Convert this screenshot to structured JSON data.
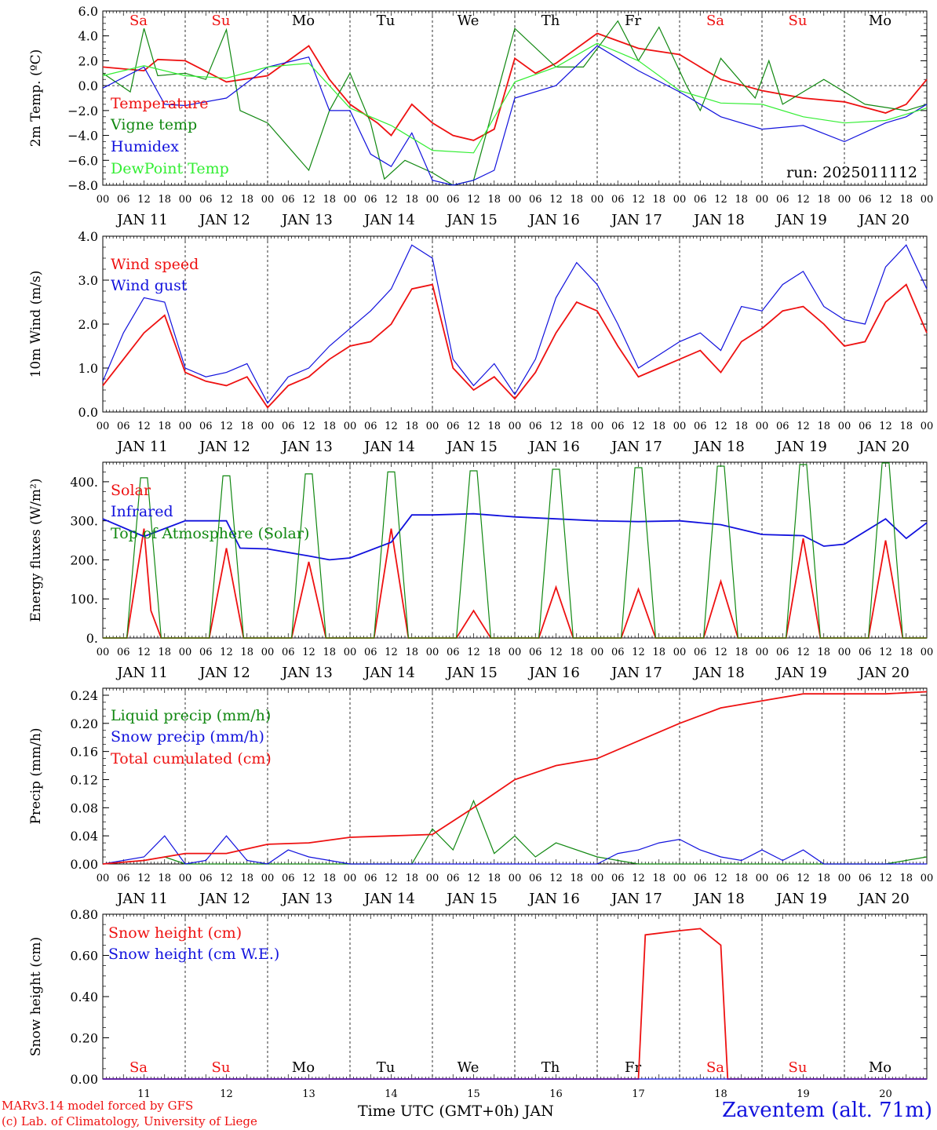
{
  "footer": {
    "model": "MARv3.14 model forced by GFS",
    "lab": "(c) Lab. of Climatology, University of Liege",
    "xlabel": "Time UTC (GMT+0h) JAN",
    "station": "Zaventem (alt. 71m)"
  },
  "colors": {
    "red": "#ee1111",
    "green": "#118811",
    "blue": "#1111dd",
    "lightgreen": "#33ee33",
    "black": "#000000"
  },
  "x_axis": {
    "days": [
      "JAN 11",
      "JAN 12",
      "JAN 13",
      "JAN 14",
      "JAN 15",
      "JAN 16",
      "JAN 17",
      "JAN 18",
      "JAN 19",
      "JAN 20"
    ],
    "hour_ticks": [
      "00",
      "06",
      "12",
      "18"
    ],
    "last_tick": "00",
    "bottom_days": [
      "11",
      "12",
      "13",
      "14",
      "15",
      "16",
      "17",
      "18",
      "19",
      "20"
    ]
  },
  "weekdays": [
    {
      "label": "Sa",
      "weekend": true
    },
    {
      "label": "Su",
      "weekend": true
    },
    {
      "label": "Mo",
      "weekend": false
    },
    {
      "label": "Tu",
      "weekend": false
    },
    {
      "label": "We",
      "weekend": false
    },
    {
      "label": "Th",
      "weekend": false
    },
    {
      "label": "Fr",
      "weekend": false
    },
    {
      "label": "Sa",
      "weekend": true
    },
    {
      "label": "Su",
      "weekend": true
    },
    {
      "label": "Mo",
      "weekend": false
    }
  ],
  "chart_data": [
    {
      "type": "line",
      "ylabel": "2m Temp. (ºC)",
      "ylim": [
        -8,
        6
      ],
      "yticks": [
        "6.0",
        "4.0",
        "2.0",
        "0.0",
        "−2.0",
        "−4.0",
        "−6.0",
        "−8.0"
      ],
      "yticks_values": [
        6,
        4,
        2,
        0,
        -2,
        -4,
        -6,
        -8
      ],
      "annotation": "run: 2025011112",
      "zero_line": true,
      "series": [
        {
          "name": "Temperature",
          "color": "red",
          "x": [
            0,
            12,
            16,
            24,
            36,
            48,
            60,
            66,
            72,
            80,
            84,
            90,
            96,
            102,
            108,
            114,
            120,
            126,
            132,
            144,
            156,
            168,
            180,
            192,
            204,
            216,
            228,
            234,
            240
          ],
          "y": [
            1.5,
            1.2,
            2.1,
            2.0,
            0.3,
            0.8,
            3.2,
            0.5,
            -1.5,
            -3,
            -4,
            -1.5,
            -3,
            -4,
            -4.4,
            -3.5,
            2.2,
            1,
            1.8,
            4.2,
            3,
            2.5,
            0.5,
            -0.4,
            -1,
            -1.3,
            -2.2,
            -1.5,
            0.5
          ]
        },
        {
          "name": "Vigne temp",
          "color": "green",
          "x": [
            0,
            8,
            12,
            16,
            24,
            30,
            36,
            40,
            48,
            60,
            66,
            72,
            78,
            82,
            88,
            96,
            102,
            108,
            120,
            132,
            140,
            150,
            156,
            162,
            170,
            174,
            180,
            190,
            194,
            198,
            210,
            222,
            234,
            240
          ],
          "y": [
            1,
            -0.5,
            4.6,
            0.8,
            1,
            0.5,
            4.5,
            -2,
            -3,
            -6.8,
            -2,
            1,
            -3,
            -7.5,
            -6,
            -7,
            -8,
            -7.6,
            4.6,
            1.5,
            1.5,
            5.2,
            2,
            4.7,
            0,
            -2,
            2.2,
            -1,
            2,
            -1.5,
            0.5,
            -1.5,
            -2,
            -1.5
          ]
        },
        {
          "name": "Humidex",
          "color": "blue",
          "x": [
            0,
            12,
            18,
            24,
            36,
            48,
            60,
            66,
            72,
            78,
            84,
            90,
            96,
            102,
            108,
            114,
            120,
            132,
            144,
            156,
            168,
            180,
            192,
            204,
            216,
            228,
            234,
            240
          ],
          "y": [
            -0.2,
            1.5,
            -1.5,
            -1.6,
            -1,
            1.5,
            2.3,
            -2,
            -2,
            -5.5,
            -6.5,
            -3.8,
            -7.6,
            -8,
            -7.6,
            -6.8,
            -1,
            0,
            3.2,
            1.2,
            -0.5,
            -2.5,
            -3.5,
            -3.2,
            -4.5,
            -3,
            -2.5,
            -1.5
          ]
        },
        {
          "name": "DewPoint Temp",
          "color": "lightgreen",
          "x": [
            0,
            12,
            24,
            36,
            48,
            60,
            72,
            84,
            96,
            108,
            120,
            132,
            144,
            156,
            168,
            180,
            192,
            204,
            216,
            228,
            240
          ],
          "y": [
            0.8,
            1.6,
            0.8,
            0.6,
            1.5,
            1.8,
            -1.8,
            -3.2,
            -5.2,
            -5.4,
            0.3,
            1.5,
            3.4,
            2,
            -0.4,
            -1.4,
            -1.5,
            -2.5,
            -3,
            -2.8,
            -1.8
          ]
        }
      ]
    },
    {
      "type": "line",
      "ylabel": "10m Wind (m/s)",
      "ylim": [
        0,
        4
      ],
      "yticks": [
        "4.0",
        "3.0",
        "2.0",
        "1.0",
        "0.0"
      ],
      "yticks_values": [
        4,
        3,
        2,
        1,
        0
      ],
      "series": [
        {
          "name": "Wind speed",
          "color": "red",
          "x": [
            0,
            6,
            12,
            18,
            24,
            30,
            36,
            42,
            48,
            54,
            60,
            66,
            72,
            78,
            84,
            90,
            96,
            102,
            108,
            114,
            120,
            126,
            132,
            138,
            144,
            150,
            156,
            162,
            168,
            174,
            180,
            186,
            192,
            198,
            204,
            210,
            216,
            222,
            228,
            234,
            240
          ],
          "y": [
            0.6,
            1.2,
            1.8,
            2.2,
            0.9,
            0.7,
            0.6,
            0.8,
            0.1,
            0.6,
            0.8,
            1.2,
            1.5,
            1.6,
            2.0,
            2.8,
            2.9,
            1.0,
            0.5,
            0.8,
            0.3,
            0.9,
            1.8,
            2.5,
            2.3,
            1.5,
            0.8,
            1.0,
            1.2,
            1.4,
            0.9,
            1.6,
            1.9,
            2.3,
            2.4,
            2.0,
            1.5,
            1.6,
            2.5,
            2.9,
            1.8
          ]
        },
        {
          "name": "Wind gust",
          "color": "blue",
          "x": [
            0,
            6,
            12,
            18,
            24,
            30,
            36,
            42,
            48,
            54,
            60,
            66,
            72,
            78,
            84,
            90,
            96,
            102,
            108,
            114,
            120,
            126,
            132,
            138,
            144,
            150,
            156,
            162,
            168,
            174,
            180,
            186,
            192,
            198,
            204,
            210,
            216,
            222,
            228,
            234,
            240
          ],
          "y": [
            0.7,
            1.8,
            2.6,
            2.5,
            1.0,
            0.8,
            0.9,
            1.1,
            0.2,
            0.8,
            1.0,
            1.5,
            1.9,
            2.3,
            2.8,
            3.8,
            3.5,
            1.2,
            0.6,
            1.1,
            0.4,
            1.2,
            2.6,
            3.4,
            2.9,
            2.0,
            1.0,
            1.3,
            1.6,
            1.8,
            1.4,
            2.4,
            2.3,
            2.9,
            3.2,
            2.4,
            2.1,
            2.0,
            3.3,
            3.8,
            2.8
          ]
        }
      ]
    },
    {
      "type": "line",
      "ylabel": "Energy fluxes (W/m²)",
      "ylim": [
        0,
        450
      ],
      "yticks": [
        "400.",
        "300.",
        "200.",
        "100.",
        "0."
      ],
      "yticks_values": [
        400,
        300,
        200,
        100,
        0
      ],
      "series": [
        {
          "name": "Solar",
          "color": "red",
          "x": [
            0,
            7,
            12,
            14,
            17,
            24,
            31,
            36,
            41,
            48,
            55,
            60,
            65,
            72,
            79,
            84,
            89,
            96,
            103,
            108,
            113,
            120,
            127,
            132,
            137,
            144,
            151,
            156,
            161,
            168,
            175,
            180,
            185,
            192,
            199,
            204,
            209,
            216,
            223,
            228,
            233,
            240
          ],
          "y": [
            0,
            0,
            280,
            70,
            0,
            0,
            0,
            230,
            0,
            0,
            0,
            195,
            0,
            0,
            0,
            280,
            0,
            0,
            0,
            70,
            0,
            0,
            0,
            130,
            0,
            0,
            0,
            125,
            0,
            0,
            0,
            145,
            0,
            0,
            0,
            255,
            0,
            0,
            0,
            250,
            0,
            0
          ]
        },
        {
          "name": "Infrared",
          "color": "blue",
          "x": [
            0,
            12,
            24,
            36,
            40,
            48,
            60,
            66,
            72,
            84,
            90,
            96,
            108,
            120,
            132,
            144,
            156,
            168,
            180,
            192,
            204,
            210,
            216,
            228,
            234,
            240
          ],
          "y": [
            305,
            260,
            300,
            300,
            230,
            228,
            210,
            200,
            205,
            245,
            315,
            315,
            318,
            310,
            305,
            300,
            298,
            300,
            290,
            265,
            262,
            235,
            240,
            305,
            255,
            295
          ]
        },
        {
          "name": "Top of Atmosphere (Solar)",
          "color": "green",
          "x": [
            0,
            7,
            11,
            13,
            17,
            24,
            31,
            35,
            37,
            41,
            48,
            55,
            59,
            61,
            65,
            72,
            79,
            83,
            85,
            89,
            96,
            103,
            107,
            109,
            113,
            120,
            127,
            131,
            133,
            137,
            144,
            151,
            155,
            157,
            161,
            168,
            175,
            179,
            181,
            185,
            192,
            199,
            203,
            205,
            209,
            216,
            223,
            227,
            229,
            233,
            240
          ],
          "y": [
            0,
            0,
            410,
            410,
            0,
            0,
            0,
            415,
            415,
            0,
            0,
            0,
            420,
            420,
            0,
            0,
            0,
            425,
            425,
            0,
            0,
            0,
            428,
            428,
            0,
            0,
            0,
            432,
            432,
            0,
            0,
            0,
            436,
            436,
            0,
            0,
            0,
            440,
            440,
            0,
            0,
            0,
            444,
            444,
            0,
            0,
            0,
            448,
            448,
            0,
            0
          ]
        }
      ]
    },
    {
      "type": "line",
      "ylabel": "Precip (mm/h)",
      "ylim": [
        0,
        0.25
      ],
      "yticks": [
        "0.24",
        "0.20",
        "0.16",
        "0.12",
        "0.08",
        "0.04",
        "0.00"
      ],
      "yticks_values": [
        0.24,
        0.2,
        0.16,
        0.12,
        0.08,
        0.04,
        0
      ],
      "series": [
        {
          "name": "Liquid precip (mm/h)",
          "color": "green",
          "x": [
            0,
            12,
            18,
            24,
            36,
            42,
            48,
            60,
            90,
            96,
            102,
            108,
            114,
            120,
            126,
            132,
            144,
            150,
            156,
            168,
            180,
            192,
            204,
            216,
            228,
            240
          ],
          "y": [
            0,
            0.005,
            0.01,
            0,
            0,
            0,
            0,
            0,
            0,
            0.05,
            0.02,
            0.09,
            0.015,
            0.04,
            0.01,
            0.03,
            0.01,
            0.005,
            0,
            0,
            0,
            0,
            0,
            0,
            0,
            0.01
          ]
        },
        {
          "name": "Snow precip (mm/h)",
          "color": "blue",
          "x": [
            0,
            12,
            18,
            24,
            30,
            36,
            42,
            48,
            54,
            60,
            66,
            72,
            84,
            96,
            120,
            132,
            144,
            150,
            156,
            162,
            168,
            174,
            180,
            186,
            192,
            198,
            204,
            210,
            216,
            228,
            240
          ],
          "y": [
            0,
            0.01,
            0.04,
            0,
            0.005,
            0.04,
            0.005,
            0,
            0.02,
            0.01,
            0.005,
            0,
            0,
            0,
            0,
            0,
            0,
            0.015,
            0.02,
            0.03,
            0.035,
            0.02,
            0.01,
            0.005,
            0.02,
            0.005,
            0.02,
            0,
            0,
            0,
            0
          ]
        },
        {
          "name": "Total cumulated (cm)",
          "color": "red",
          "x": [
            0,
            12,
            24,
            36,
            48,
            60,
            72,
            84,
            96,
            108,
            120,
            132,
            144,
            156,
            168,
            180,
            192,
            204,
            216,
            228,
            240
          ],
          "y": [
            0,
            0.005,
            0.015,
            0.015,
            0.028,
            0.03,
            0.038,
            0.04,
            0.042,
            0.08,
            0.12,
            0.14,
            0.15,
            0.175,
            0.2,
            0.222,
            0.232,
            0.242,
            0.242,
            0.242,
            0.245
          ]
        }
      ]
    },
    {
      "type": "line",
      "ylabel": "Snow height (cm)",
      "ylim": [
        0,
        0.8
      ],
      "yticks": [
        "0.80",
        "0.60",
        "0.40",
        "0.20",
        "0.00"
      ],
      "yticks_values": [
        0.8,
        0.6,
        0.4,
        0.2,
        0
      ],
      "series": [
        {
          "name": "Snow height (cm)",
          "color": "red",
          "x": [
            0,
            156,
            158,
            168,
            174,
            180,
            182,
            184,
            240
          ],
          "y": [
            0,
            0,
            0.7,
            0.72,
            0.73,
            0.65,
            0,
            0,
            0
          ]
        },
        {
          "name": "Snow height (cm W.E.)",
          "color": "blue",
          "x": [
            0,
            240
          ],
          "y": [
            0,
            0
          ]
        }
      ]
    }
  ]
}
